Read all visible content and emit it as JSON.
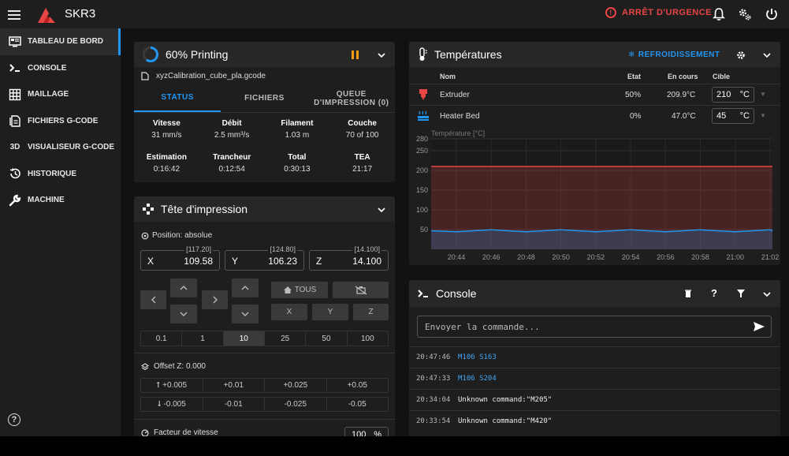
{
  "app": {
    "brand": "SKR3",
    "emergency_label": "ARRÊT D'URGENCE"
  },
  "sidebar": {
    "items": [
      {
        "label": "TABLEAU DE BORD",
        "icon": "dashboard-icon",
        "active": true
      },
      {
        "label": "CONSOLE",
        "icon": "console-icon"
      },
      {
        "label": "MAILLAGE",
        "icon": "grid-icon"
      },
      {
        "label": "FICHIERS G-CODE",
        "icon": "file-icon"
      },
      {
        "label": "VISUALISEUR G-CODE",
        "icon": "3d-icon",
        "icon_text": "3D"
      },
      {
        "label": "HISTORIQUE",
        "icon": "history-icon"
      },
      {
        "label": "MACHINE",
        "icon": "wrench-icon"
      }
    ]
  },
  "status": {
    "title": "60% Printing",
    "progress": 0.6,
    "filename": "xyzCalibration_cube_pla.gcode",
    "tabs": [
      {
        "label": "STATUS",
        "active": true
      },
      {
        "label": "FICHIERS"
      },
      {
        "label": "QUEUE D'IMPRESSION (0)"
      }
    ],
    "stats": [
      {
        "k": "Vitesse",
        "v": "31 mm/s"
      },
      {
        "k": "Débit",
        "v": "2.5 mm³/s"
      },
      {
        "k": "Filament",
        "v": "1.03 m"
      },
      {
        "k": "Couche",
        "v": "70 of 100"
      },
      {
        "k": "Estimation",
        "v": "0:16:42"
      },
      {
        "k": "Trancheur",
        "v": "0:12:54"
      },
      {
        "k": "Total",
        "v": "0:30:13"
      },
      {
        "k": "TEA",
        "v": "21:17"
      }
    ]
  },
  "toolhead": {
    "title": "Tête d'impression",
    "position_label": "Position: absolue",
    "axes": [
      {
        "label": "X",
        "value": "109.58",
        "pos": "[117.20]"
      },
      {
        "label": "Y",
        "value": "106.23",
        "pos": "[124.80]"
      },
      {
        "label": "Z",
        "value": "14.100",
        "pos": "[14.100]"
      }
    ],
    "home_all": "TOUS",
    "home_x": "X",
    "home_y": "Y",
    "home_z": "Z",
    "steps": [
      "0.1",
      "1",
      "10",
      "25",
      "50",
      "100"
    ],
    "step_active": "10",
    "offset_label": "Offset Z: 0.000",
    "offset_up": [
      "+0.005",
      "+0.01",
      "+0.025",
      "+0.05"
    ],
    "offset_down": [
      "-0.005",
      "-0.01",
      "-0.025",
      "-0.05"
    ],
    "speed_label": "Facteur de vitesse",
    "speed_value": "100",
    "speed_unit": "%"
  },
  "temps": {
    "title": "Températures",
    "cooldown": "REFROIDISSEMENT",
    "headers": {
      "name": "Nom",
      "state": "Etat",
      "current": "En cours",
      "target": "Cible"
    },
    "rows": [
      {
        "name": "Extruder",
        "state": "50%",
        "current": "209.9°C",
        "target": "210",
        "unit": "°C",
        "color": "#e84545"
      },
      {
        "name": "Heater Bed",
        "state": "0%",
        "current": "47.0°C",
        "target": "45",
        "unit": "°C",
        "color": "#2196f3"
      }
    ]
  },
  "chart_data": {
    "type": "line",
    "ylabel": "Température [°C]",
    "ylim": [
      0,
      280
    ],
    "yticks": [
      50,
      100,
      150,
      200,
      250,
      280
    ],
    "x": [
      "20:44",
      "20:46",
      "20:48",
      "20:50",
      "20:52",
      "20:54",
      "20:56",
      "20:58",
      "21:00",
      "21:02"
    ],
    "series": [
      {
        "name": "Extruder",
        "color": "#e84545",
        "values": [
          210,
          210,
          210,
          210,
          210,
          210,
          210,
          210,
          210,
          210
        ]
      },
      {
        "name": "Heater Bed",
        "color": "#2196f3",
        "values": [
          47,
          47,
          47,
          47,
          47,
          47,
          47,
          47,
          47,
          47
        ]
      }
    ]
  },
  "console": {
    "title": "Console",
    "placeholder": "Envoyer la commande...",
    "entries": [
      {
        "time": "20:47:46",
        "msg": "M106 S163",
        "kind": "cmd"
      },
      {
        "time": "20:47:33",
        "msg": "M106 S204",
        "kind": "cmd"
      },
      {
        "time": "20:34:04",
        "msg": "Unknown command:\"M205\"",
        "kind": "resp"
      },
      {
        "time": "20:33:54",
        "msg": "Unknown command:\"M420\"",
        "kind": "resp"
      }
    ]
  }
}
